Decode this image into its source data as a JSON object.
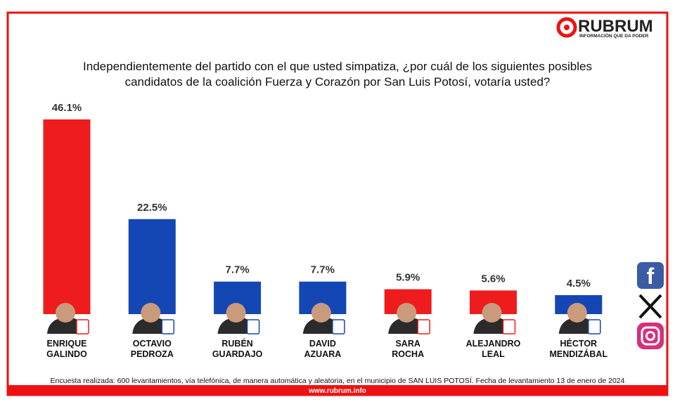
{
  "chart_data": {
    "type": "bar",
    "brand": "RUBRUM",
    "brand_tagline": "INFORMACIÓN QUE DA PODER",
    "title": "Independientemente del partido con el que usted simpatiza, ¿por cuál de los siguientes posibles\ncandidatos de la coalición Fuerza y Corazón por San Luis Potosí, votaría usted?",
    "categories": [
      "ENRIQUE\nGALINDO",
      "OCTAVIO\nPEDROZA",
      "RUBÉN\nGUARDAJO",
      "DAVID\nAZUARA",
      "SARA\nROCHA",
      "ALEJANDRO\nLEAL",
      "HÉCTOR\nMENDIZÁBAL"
    ],
    "values": [
      46.1,
      22.5,
      7.7,
      7.7,
      5.9,
      5.6,
      4.5
    ],
    "value_labels": [
      "46.1%",
      "22.5%",
      "7.7%",
      "7.7%",
      "5.9%",
      "5.6%",
      "4.5%"
    ],
    "colors": [
      "#ee1c1c",
      "#1446b4",
      "#1446b4",
      "#1446b4",
      "#ee1c1c",
      "#ee1c1c",
      "#1446b4"
    ],
    "note": "Encuesta realizada: 600 levantamientos, vía telefónica, de manera automática y aleatoria, en el municipio de SAN LUIS POTOSÍ. Fecha de levantamiento 13 de enero de 2024",
    "website": "www.rubrum.info"
  }
}
